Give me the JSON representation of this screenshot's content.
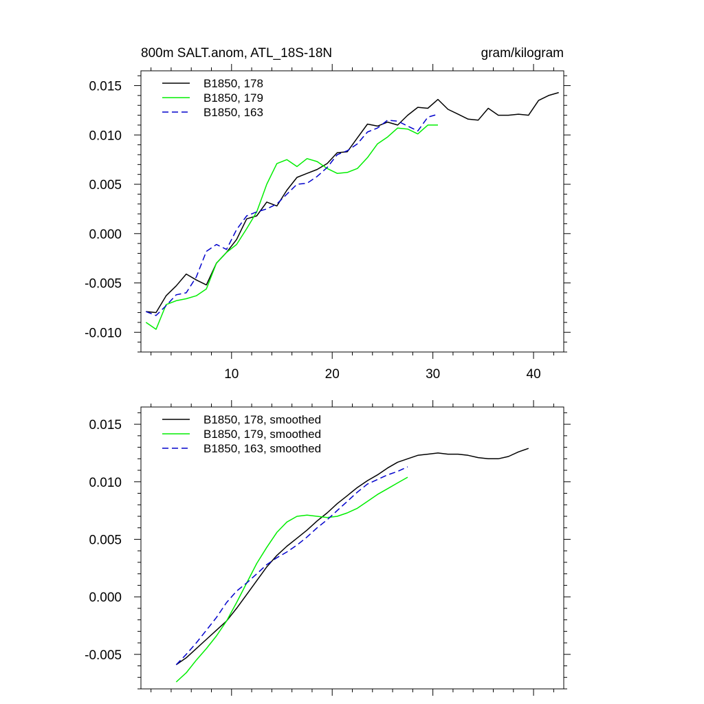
{
  "chart_data": [
    {
      "type": "line",
      "title": "800m SALT.anom, ATL_18S-18N",
      "subtitle_right": "gram/kilogram",
      "xlabel": "",
      "ylabel": "",
      "xlim": [
        1,
        43
      ],
      "ylim": [
        -0.012,
        0.0165
      ],
      "xticks": [
        10,
        20,
        30,
        40
      ],
      "xtick_labels": [
        "10",
        "20",
        "30",
        "40"
      ],
      "yticks": [
        0.015,
        0.01,
        0.005,
        0.0,
        -0.005,
        -0.01
      ],
      "ytick_labels": [
        "0.015",
        "0.010",
        "0.005",
        "0.000",
        "-0.005",
        "-0.010"
      ],
      "legend_position": "top-left",
      "series": [
        {
          "name": "B1850, 178",
          "color": "#000000",
          "dash": "solid",
          "x": [
            1.5,
            2.5,
            3.5,
            4.5,
            5.5,
            6.5,
            7.5,
            8.5,
            9.5,
            10.5,
            11.5,
            12.5,
            13.5,
            14.5,
            15.5,
            16.5,
            17.5,
            18.5,
            19.5,
            20.5,
            21.5,
            22.5,
            23.5,
            24.5,
            25.5,
            26.5,
            27.5,
            28.5,
            29.5,
            30.5,
            31.5,
            32.5,
            33.5,
            34.5,
            35.5,
            36.5,
            37.5,
            38.5,
            39.5,
            40.5,
            41.5,
            42.5
          ],
          "y": [
            -0.0079,
            -0.008,
            -0.0063,
            -0.0053,
            -0.0041,
            -0.0047,
            -0.0052,
            -0.003,
            -0.0019,
            -0.0006,
            0.0015,
            0.0018,
            0.0032,
            0.0028,
            0.0044,
            0.0057,
            0.0061,
            0.0065,
            0.0071,
            0.0082,
            0.0083,
            0.0097,
            0.0111,
            0.0109,
            0.0113,
            0.011,
            0.012,
            0.0128,
            0.0127,
            0.0136,
            0.0126,
            0.0121,
            0.0116,
            0.0115,
            0.0127,
            0.012,
            0.012,
            0.0121,
            0.012,
            0.0135,
            0.014,
            0.0143
          ]
        },
        {
          "name": "B1850, 179",
          "color": "#00ee00",
          "dash": "solid",
          "x": [
            1.5,
            2.5,
            3.5,
            4.5,
            5.5,
            6.5,
            7.5,
            8.5,
            9.5,
            10.5,
            11.5,
            12.5,
            13.5,
            14.5,
            15.5,
            16.5,
            17.5,
            18.5,
            19.5,
            20.5,
            21.5,
            22.5,
            23.5,
            24.5,
            25.5,
            26.5,
            27.5,
            28.5,
            29.5,
            30.5
          ],
          "y": [
            -0.009,
            -0.0097,
            -0.0072,
            -0.0068,
            -0.0066,
            -0.0063,
            -0.0056,
            -0.003,
            -0.0019,
            -0.0011,
            0.0005,
            0.0022,
            0.005,
            0.0071,
            0.0075,
            0.0068,
            0.0076,
            0.0073,
            0.0066,
            0.0061,
            0.0062,
            0.0066,
            0.0077,
            0.0091,
            0.0098,
            0.0107,
            0.0106,
            0.0101,
            0.011,
            0.011
          ]
        },
        {
          "name": "B1850, 163",
          "color": "#0000cc",
          "dash": "dashed",
          "x": [
            1.5,
            2.5,
            3.5,
            4.5,
            5.5,
            6.5,
            7.5,
            8.5,
            9.5,
            10.5,
            11.5,
            12.5,
            13.5,
            14.5,
            15.5,
            16.5,
            17.5,
            18.5,
            19.5,
            20.5,
            21.5,
            22.5,
            23.5,
            24.5,
            25.5,
            26.5,
            27.5,
            28.5,
            29.5,
            30.5
          ],
          "y": [
            -0.0079,
            -0.0083,
            -0.0073,
            -0.0062,
            -0.006,
            -0.0044,
            -0.0018,
            -0.0011,
            -0.0016,
            0.0004,
            0.0018,
            0.0022,
            0.0025,
            0.003,
            0.004,
            0.005,
            0.0051,
            0.0058,
            0.0067,
            0.008,
            0.0084,
            0.0091,
            0.0103,
            0.0107,
            0.0115,
            0.0114,
            0.0109,
            0.0104,
            0.0118,
            0.0121
          ]
        }
      ]
    },
    {
      "type": "line",
      "title": "",
      "xlabel": "",
      "ylabel": "",
      "xlim": [
        1,
        43
      ],
      "ylim": [
        -0.008,
        0.0165
      ],
      "xticks": [
        10,
        20,
        30,
        40
      ],
      "yticks": [
        0.015,
        0.01,
        0.005,
        0.0,
        -0.005
      ],
      "ytick_labels": [
        "0.015",
        "0.010",
        "0.005",
        "0.000",
        "-0.005"
      ],
      "legend_position": "top-left",
      "series": [
        {
          "name": "B1850, 178, smoothed",
          "color": "#000000",
          "dash": "solid",
          "x": [
            4.5,
            5.5,
            6.5,
            7.5,
            8.5,
            9.5,
            10.5,
            11.5,
            12.5,
            13.5,
            14.5,
            15.5,
            16.5,
            17.5,
            18.5,
            19.5,
            20.5,
            21.5,
            22.5,
            23.5,
            24.5,
            25.5,
            26.5,
            27.5,
            28.5,
            29.5,
            30.5,
            31.5,
            32.5,
            33.5,
            34.5,
            35.5,
            36.5,
            37.5,
            38.5,
            39.5
          ],
          "y": [
            -0.0059,
            -0.0053,
            -0.0045,
            -0.0037,
            -0.0029,
            -0.0021,
            -0.001,
            0.0002,
            0.0014,
            0.0026,
            0.0036,
            0.0044,
            0.0051,
            0.0058,
            0.0066,
            0.0073,
            0.0081,
            0.0088,
            0.0095,
            0.0101,
            0.0106,
            0.0112,
            0.0117,
            0.012,
            0.0123,
            0.0124,
            0.0125,
            0.0124,
            0.0124,
            0.0123,
            0.0121,
            0.012,
            0.012,
            0.0122,
            0.0126,
            0.0129
          ]
        },
        {
          "name": "B1850, 179, smoothed",
          "color": "#00ee00",
          "dash": "solid",
          "x": [
            4.5,
            5.5,
            6.5,
            7.5,
            8.5,
            9.5,
            10.5,
            11.5,
            12.5,
            13.5,
            14.5,
            15.5,
            16.5,
            17.5,
            18.5,
            19.5,
            20.5,
            21.5,
            22.5,
            23.5,
            24.5,
            25.5,
            26.5,
            27.5
          ],
          "y": [
            -0.0074,
            -0.0066,
            -0.0055,
            -0.0045,
            -0.0034,
            -0.0021,
            -0.0005,
            0.0012,
            0.0029,
            0.0043,
            0.0056,
            0.0065,
            0.007,
            0.0071,
            0.007,
            0.0069,
            0.007,
            0.0073,
            0.0077,
            0.0083,
            0.0089,
            0.0094,
            0.0099,
            0.0104
          ]
        },
        {
          "name": "B1850, 163, smoothed",
          "color": "#0000cc",
          "dash": "dashed",
          "x": [
            4.5,
            5.5,
            6.5,
            7.5,
            8.5,
            9.5,
            10.5,
            11.5,
            12.5,
            13.5,
            14.5,
            15.5,
            16.5,
            17.5,
            18.5,
            19.5,
            20.5,
            21.5,
            22.5,
            23.5,
            24.5,
            25.5,
            26.5,
            27.5
          ],
          "y": [
            -0.0059,
            -0.005,
            -0.004,
            -0.0029,
            -0.0018,
            -0.0005,
            0.0005,
            0.0012,
            0.002,
            0.0028,
            0.0034,
            0.0039,
            0.0045,
            0.0052,
            0.006,
            0.0067,
            0.0075,
            0.0083,
            0.0091,
            0.0098,
            0.0102,
            0.0106,
            0.0109,
            0.0113
          ]
        }
      ]
    }
  ]
}
